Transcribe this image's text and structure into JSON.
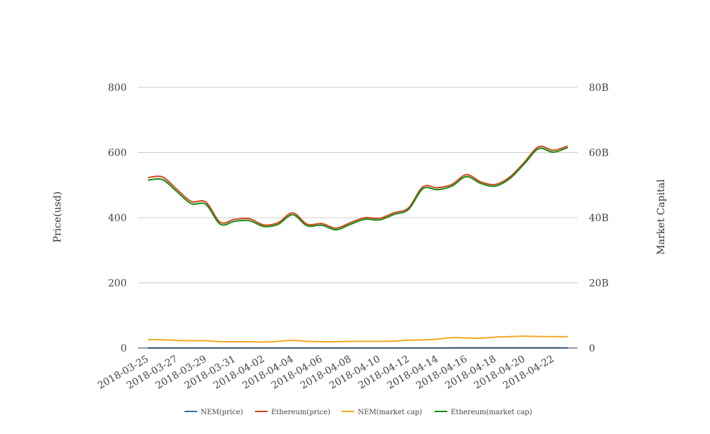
{
  "chart_data": {
    "type": "line",
    "x": [
      "2018-03-25",
      "2018-03-26",
      "2018-03-27",
      "2018-03-28",
      "2018-03-29",
      "2018-03-30",
      "2018-03-31",
      "2018-04-01",
      "2018-04-02",
      "2018-04-03",
      "2018-04-04",
      "2018-04-05",
      "2018-04-06",
      "2018-04-07",
      "2018-04-08",
      "2018-04-09",
      "2018-04-10",
      "2018-04-11",
      "2018-04-12",
      "2018-04-13",
      "2018-04-14",
      "2018-04-15",
      "2018-04-16",
      "2018-04-17",
      "2018-04-18",
      "2018-04-19",
      "2018-04-20",
      "2018-04-21",
      "2018-04-22",
      "2018-04-23"
    ],
    "x_tick_labels": [
      "2018-03-25",
      "2018-03-27",
      "2018-03-29",
      "2018-03-31",
      "2018-04-02",
      "2018-04-04",
      "2018-04-06",
      "2018-04-08",
      "2018-04-10",
      "2018-04-12",
      "2018-04-14",
      "2018-04-16",
      "2018-04-18",
      "2018-04-20",
      "2018-04-22"
    ],
    "y_left": {
      "label": "Price(usd)",
      "ticks": [
        "0",
        "200",
        "400",
        "600",
        "800"
      ],
      "ylim": [
        0,
        800
      ]
    },
    "y_right": {
      "label": "Market Capital",
      "ticks": [
        "0",
        "20B",
        "40B",
        "60B",
        "80B"
      ],
      "ylim": [
        0,
        80000000000
      ]
    },
    "grid": true,
    "legend_position": "bottom",
    "series": [
      {
        "name": "NEM(price)",
        "axis": "left",
        "color": "#2e6da4",
        "values": [
          0.28,
          0.28,
          0.26,
          0.24,
          0.24,
          0.21,
          0.21,
          0.21,
          0.2,
          0.22,
          0.25,
          0.22,
          0.21,
          0.21,
          0.22,
          0.22,
          0.22,
          0.23,
          0.26,
          0.27,
          0.3,
          0.35,
          0.34,
          0.33,
          0.36,
          0.38,
          0.4,
          0.39,
          0.38,
          0.38
        ]
      },
      {
        "name": "Ethereum(price)",
        "axis": "left",
        "color": "#d04a1a",
        "values": [
          523,
          525,
          487,
          450,
          448,
          386,
          395,
          397,
          378,
          385,
          415,
          380,
          382,
          368,
          385,
          400,
          398,
          415,
          430,
          495,
          492,
          502,
          532,
          510,
          502,
          525,
          570,
          618,
          607,
          620
        ]
      },
      {
        "name": "NEM(market cap)",
        "axis": "right",
        "color": "#f5a623",
        "values": [
          2550000000.0,
          2550000000.0,
          2350000000.0,
          2250000000.0,
          2250000000.0,
          1950000000.0,
          1950000000.0,
          1950000000.0,
          1850000000.0,
          2050000000.0,
          2350000000.0,
          2050000000.0,
          1950000000.0,
          1950000000.0,
          2050000000.0,
          2050000000.0,
          2050000000.0,
          2150000000.0,
          2400000000.0,
          2500000000.0,
          2750000000.0,
          3200000000.0,
          3100000000.0,
          3050000000.0,
          3350000000.0,
          3500000000.0,
          3650000000.0,
          3550000000.0,
          3500000000.0,
          3500000000.0
        ]
      },
      {
        "name": "Ethereum(market cap)",
        "axis": "right",
        "color": "#1a8a1a",
        "values": [
          51500000000.0,
          51700000000.0,
          48000000000.0,
          44300000000.0,
          44100000000.0,
          38000000000.0,
          38900000000.0,
          39100000000.0,
          37300000000.0,
          38000000000.0,
          40900000000.0,
          37500000000.0,
          37700000000.0,
          36300000000.0,
          38000000000.0,
          39500000000.0,
          39300000000.0,
          41000000000.0,
          42500000000.0,
          48900000000.0,
          48600000000.0,
          49700000000.0,
          52600000000.0,
          50500000000.0,
          49700000000.0,
          52000000000.0,
          56500000000.0,
          61200000000.0,
          60100000000.0,
          61500000000.0
        ]
      }
    ]
  }
}
